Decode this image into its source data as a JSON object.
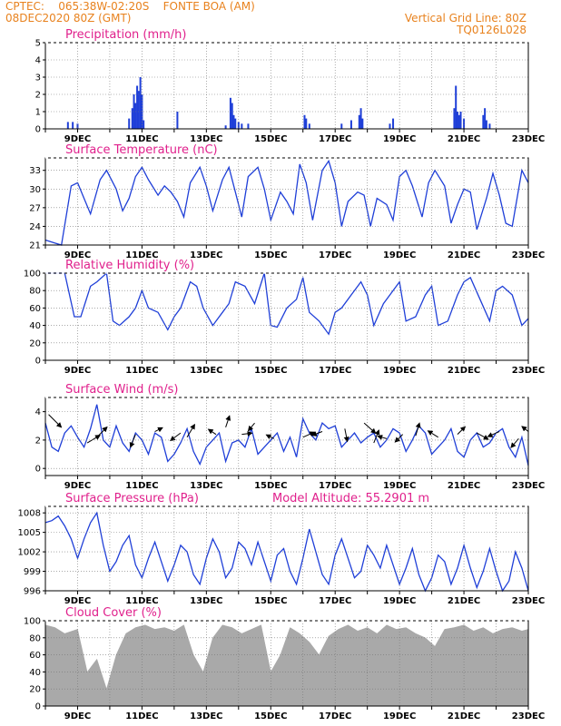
{
  "header": {
    "line1": "CPTEC:    065:38W-02:20S    FONTE BOA (AM)",
    "line2": "08DEC2020 80Z (GMT)",
    "right1": "Vertical Grid Line: 80Z",
    "right2": "TQ0126L028"
  },
  "x_labels": [
    "9DEC",
    "11DEC",
    "13DEC",
    "15DEC",
    "17DEC",
    "19DEC",
    "21DEC",
    "23DEC"
  ],
  "chart_data": [
    {
      "type": "bar",
      "title": "Precipitation (mm/h)",
      "ylim": [
        0,
        5
      ],
      "yticks": [
        0,
        1,
        2,
        3,
        4,
        5
      ],
      "x_range_days": [
        8.0,
        23.0
      ],
      "bars": [
        [
          8.7,
          0.4
        ],
        [
          8.85,
          0.4
        ],
        [
          9.0,
          0.3
        ],
        [
          10.6,
          0.6
        ],
        [
          10.7,
          1.2
        ],
        [
          10.75,
          2.0
        ],
        [
          10.8,
          1.5
        ],
        [
          10.85,
          2.5
        ],
        [
          10.9,
          2.2
        ],
        [
          10.95,
          3.0
        ],
        [
          11.0,
          2.0
        ],
        [
          11.05,
          0.5
        ],
        [
          12.1,
          1.0
        ],
        [
          13.6,
          0.2
        ],
        [
          13.75,
          1.8
        ],
        [
          13.8,
          1.5
        ],
        [
          13.85,
          0.8
        ],
        [
          13.9,
          0.6
        ],
        [
          14.0,
          0.4
        ],
        [
          14.1,
          0.3
        ],
        [
          14.3,
          0.3
        ],
        [
          16.05,
          0.8
        ],
        [
          16.1,
          0.6
        ],
        [
          16.2,
          0.3
        ],
        [
          17.2,
          0.3
        ],
        [
          17.5,
          0.5
        ],
        [
          17.75,
          0.8
        ],
        [
          17.8,
          1.2
        ],
        [
          17.85,
          0.6
        ],
        [
          18.7,
          0.3
        ],
        [
          18.8,
          0.6
        ],
        [
          20.7,
          1.2
        ],
        [
          20.75,
          2.5
        ],
        [
          20.8,
          1.0
        ],
        [
          20.85,
          0.8
        ],
        [
          20.9,
          1.0
        ],
        [
          21.0,
          0.6
        ],
        [
          21.6,
          0.8
        ],
        [
          21.65,
          1.2
        ],
        [
          21.7,
          0.5
        ],
        [
          21.8,
          0.3
        ]
      ]
    },
    {
      "type": "line",
      "title": "Surface Temperature (nC)",
      "ylim": [
        21,
        35
      ],
      "yticks": [
        21,
        24,
        27,
        30,
        33
      ],
      "x": [
        8.0,
        8.3,
        8.5,
        8.8,
        9.0,
        9.2,
        9.4,
        9.7,
        9.9,
        10.2,
        10.4,
        10.6,
        10.8,
        11.0,
        11.2,
        11.5,
        11.7,
        11.9,
        12.1,
        12.3,
        12.5,
        12.8,
        13.0,
        13.2,
        13.5,
        13.7,
        13.9,
        14.1,
        14.3,
        14.6,
        14.8,
        15.0,
        15.3,
        15.5,
        15.7,
        15.9,
        16.1,
        16.3,
        16.6,
        16.8,
        17.0,
        17.2,
        17.4,
        17.7,
        17.9,
        18.1,
        18.3,
        18.6,
        18.8,
        19.0,
        19.2,
        19.4,
        19.7,
        19.9,
        20.1,
        20.4,
        20.6,
        20.8,
        21.0,
        21.2,
        21.4,
        21.7,
        21.9,
        22.1,
        22.3,
        22.5,
        22.8,
        23.0
      ],
      "y": [
        21.8,
        21.3,
        21.0,
        30.5,
        31.0,
        28.5,
        26.0,
        31.5,
        33.0,
        30.0,
        26.5,
        28.5,
        32.0,
        33.5,
        31.5,
        29.0,
        30.5,
        29.5,
        28.0,
        25.5,
        31.0,
        33.5,
        30.5,
        26.5,
        31.5,
        33.5,
        29.5,
        25.5,
        32.0,
        33.5,
        30.0,
        25.0,
        29.5,
        28.0,
        26.0,
        34.0,
        31.0,
        25.0,
        33.0,
        34.5,
        31.0,
        24.0,
        28.0,
        29.5,
        29.0,
        24.0,
        28.5,
        27.5,
        25.0,
        32.0,
        33.0,
        30.5,
        25.5,
        31.0,
        33.0,
        30.5,
        24.5,
        27.5,
        30.0,
        29.5,
        23.5,
        28.5,
        32.5,
        29.0,
        24.5,
        24.0,
        33.0,
        31.0
      ]
    },
    {
      "type": "line",
      "title": "Relative Humidity (%)",
      "ylim": [
        0,
        100
      ],
      "yticks": [
        0,
        20,
        40,
        60,
        80,
        100
      ],
      "x": [
        8.0,
        8.3,
        8.6,
        8.9,
        9.1,
        9.4,
        9.6,
        9.9,
        10.1,
        10.3,
        10.6,
        10.8,
        11.0,
        11.2,
        11.5,
        11.8,
        12.0,
        12.2,
        12.5,
        12.7,
        12.9,
        13.2,
        13.5,
        13.7,
        13.9,
        14.2,
        14.5,
        14.8,
        15.0,
        15.2,
        15.5,
        15.8,
        16.0,
        16.2,
        16.5,
        16.8,
        17.0,
        17.2,
        17.5,
        17.8,
        18.0,
        18.2,
        18.5,
        18.8,
        19.0,
        19.2,
        19.5,
        19.8,
        20.0,
        20.2,
        20.5,
        20.8,
        21.0,
        21.2,
        21.5,
        21.8,
        22.0,
        22.2,
        22.5,
        22.8,
        23.0
      ],
      "y": [
        100,
        100,
        100,
        50,
        50,
        85,
        90,
        100,
        45,
        40,
        50,
        60,
        80,
        60,
        55,
        35,
        50,
        60,
        90,
        85,
        60,
        40,
        55,
        65,
        90,
        85,
        65,
        100,
        40,
        38,
        60,
        70,
        95,
        55,
        45,
        30,
        55,
        60,
        75,
        90,
        75,
        40,
        65,
        80,
        90,
        45,
        50,
        75,
        85,
        40,
        45,
        75,
        90,
        95,
        70,
        45,
        80,
        85,
        75,
        40,
        48
      ]
    },
    {
      "type": "line",
      "title": "Surface Wind (m/s)",
      "ylim": [
        -0.5,
        5
      ],
      "yticks": [
        0,
        2,
        4
      ],
      "x": [
        8.0,
        8.2,
        8.4,
        8.6,
        8.8,
        9.0,
        9.2,
        9.4,
        9.6,
        9.8,
        10.0,
        10.2,
        10.4,
        10.6,
        10.8,
        11.0,
        11.2,
        11.4,
        11.6,
        11.8,
        12.0,
        12.2,
        12.4,
        12.6,
        12.8,
        13.0,
        13.2,
        13.4,
        13.6,
        13.8,
        14.0,
        14.2,
        14.4,
        14.6,
        14.8,
        15.0,
        15.2,
        15.4,
        15.6,
        15.8,
        16.0,
        16.2,
        16.4,
        16.6,
        16.8,
        17.0,
        17.2,
        17.4,
        17.6,
        17.8,
        18.0,
        18.2,
        18.4,
        18.6,
        18.8,
        19.0,
        19.2,
        19.4,
        19.6,
        19.8,
        20.0,
        20.2,
        20.4,
        20.6,
        20.8,
        21.0,
        21.2,
        21.4,
        21.6,
        21.8,
        22.0,
        22.2,
        22.4,
        22.6,
        22.8,
        23.0
      ],
      "y": [
        3.2,
        1.5,
        1.2,
        2.5,
        3.0,
        2.2,
        1.5,
        2.8,
        4.5,
        2.0,
        1.5,
        3.0,
        1.8,
        1.2,
        2.5,
        2.0,
        1.0,
        2.5,
        2.2,
        0.5,
        1.0,
        1.8,
        2.8,
        1.2,
        0.3,
        1.5,
        2.0,
        2.5,
        0.5,
        1.8,
        2.0,
        1.5,
        2.8,
        1.0,
        1.5,
        2.0,
        2.5,
        1.2,
        2.2,
        0.8,
        3.5,
        2.5,
        2.0,
        3.2,
        2.8,
        3.0,
        1.5,
        2.0,
        2.5,
        1.8,
        2.2,
        2.5,
        1.5,
        2.0,
        2.8,
        2.5,
        1.2,
        2.0,
        3.0,
        2.5,
        1.0,
        1.5,
        2.0,
        2.8,
        1.2,
        0.8,
        2.0,
        2.5,
        1.5,
        1.8,
        2.5,
        2.8,
        1.5,
        0.8,
        2.2,
        0.2
      ],
      "vectors": [
        [
          8.1,
          3.8,
          1,
          -1
        ],
        [
          9.3,
          1.8,
          1,
          0.6
        ],
        [
          9.6,
          2.2,
          0.8,
          0.8
        ],
        [
          10.8,
          2.4,
          -0.4,
          -1
        ],
        [
          11.4,
          2.6,
          0.6,
          0.3
        ],
        [
          12.2,
          2.5,
          -0.8,
          -0.6
        ],
        [
          12.4,
          2.2,
          0.6,
          1
        ],
        [
          13.3,
          2.4,
          -0.6,
          0.4
        ],
        [
          13.6,
          2.9,
          0.3,
          0.9
        ],
        [
          14.1,
          2.4,
          0.8,
          0.1
        ],
        [
          14.5,
          3.2,
          -0.5,
          -0.6
        ],
        [
          15.1,
          2.1,
          -0.6,
          0.3
        ],
        [
          16.0,
          2.2,
          0.9,
          0.4
        ],
        [
          16.6,
          2.6,
          -0.8,
          -0.3
        ],
        [
          17.3,
          2.8,
          0.2,
          -1
        ],
        [
          17.9,
          3.2,
          0.9,
          -0.8
        ],
        [
          18.2,
          1.8,
          0.4,
          1
        ],
        [
          18.6,
          2.1,
          -0.7,
          0.2
        ],
        [
          19.1,
          2.4,
          -0.6,
          -0.6
        ],
        [
          19.5,
          2.3,
          0.3,
          1
        ],
        [
          20.2,
          2.2,
          -0.8,
          0.5
        ],
        [
          20.8,
          2.4,
          0.6,
          0.6
        ],
        [
          21.4,
          2.5,
          0.9,
          -0.5
        ],
        [
          22.1,
          2.6,
          -0.9,
          -0.4
        ],
        [
          22.7,
          2.1,
          -0.6,
          -0.7
        ],
        [
          23.0,
          2.6,
          -0.5,
          0.4
        ]
      ]
    },
    {
      "type": "line",
      "title": "Surface Pressure (hPa)",
      "annotation": "Model Altitude: 55.2901  m",
      "ylim": [
        996,
        1009
      ],
      "yticks": [
        996,
        999,
        1002,
        1005,
        1008
      ],
      "x": [
        8.0,
        8.2,
        8.4,
        8.6,
        8.8,
        9.0,
        9.2,
        9.4,
        9.6,
        9.8,
        10.0,
        10.2,
        10.4,
        10.6,
        10.8,
        11.0,
        11.2,
        11.4,
        11.6,
        11.8,
        12.0,
        12.2,
        12.4,
        12.6,
        12.8,
        13.0,
        13.2,
        13.4,
        13.6,
        13.8,
        14.0,
        14.2,
        14.4,
        14.6,
        14.8,
        15.0,
        15.2,
        15.4,
        15.6,
        15.8,
        16.0,
        16.2,
        16.4,
        16.6,
        16.8,
        17.0,
        17.2,
        17.4,
        17.6,
        17.8,
        18.0,
        18.2,
        18.4,
        18.6,
        18.8,
        19.0,
        19.2,
        19.4,
        19.6,
        19.8,
        20.0,
        20.2,
        20.4,
        20.6,
        20.8,
        21.0,
        21.2,
        21.4,
        21.6,
        21.8,
        22.0,
        22.2,
        22.4,
        22.6,
        22.8,
        23.0
      ],
      "y": [
        1006.5,
        1006.8,
        1007.5,
        1006.0,
        1004.0,
        1001.0,
        1004.0,
        1006.5,
        1008.0,
        1003.0,
        999.0,
        1000.5,
        1003.0,
        1004.5,
        1000.0,
        998.0,
        1001.0,
        1003.5,
        1000.5,
        997.5,
        1000.0,
        1003.0,
        1002.0,
        998.5,
        997.0,
        1001.0,
        1004.0,
        1002.0,
        998.0,
        999.5,
        1003.5,
        1002.5,
        1000.0,
        1003.5,
        1000.5,
        997.5,
        1001.5,
        1002.5,
        999.0,
        997.0,
        1001.0,
        1005.5,
        1002.0,
        998.5,
        997.0,
        1001.5,
        1004.0,
        1001.0,
        998.0,
        999.0,
        1003.0,
        1001.5,
        999.5,
        1003.0,
        1000.0,
        997.0,
        999.5,
        1002.5,
        998.5,
        996.0,
        998.0,
        1001.5,
        1000.5,
        997.0,
        999.5,
        1003.0,
        999.5,
        996.5,
        999.0,
        1002.5,
        999.0,
        996.0,
        997.5,
        1002.0,
        999.5,
        996.0
      ]
    },
    {
      "type": "area",
      "title": "Cloud Cover (%)",
      "ylim": [
        0,
        100
      ],
      "yticks": [
        0,
        20,
        40,
        60,
        80,
        100
      ],
      "x": [
        8.0,
        8.3,
        8.6,
        9.0,
        9.3,
        9.6,
        9.9,
        10.2,
        10.5,
        10.8,
        11.1,
        11.4,
        11.7,
        12.0,
        12.3,
        12.6,
        12.9,
        13.2,
        13.5,
        13.8,
        14.1,
        14.4,
        14.7,
        15.0,
        15.3,
        15.6,
        15.9,
        16.2,
        16.5,
        16.8,
        17.1,
        17.4,
        17.7,
        18.0,
        18.3,
        18.6,
        18.9,
        19.2,
        19.5,
        19.8,
        20.1,
        20.4,
        20.7,
        21.0,
        21.3,
        21.6,
        21.9,
        22.2,
        22.5,
        22.8,
        23.0
      ],
      "y": [
        95,
        92,
        85,
        90,
        40,
        55,
        20,
        60,
        85,
        92,
        95,
        90,
        92,
        88,
        95,
        60,
        40,
        80,
        95,
        92,
        85,
        90,
        95,
        40,
        60,
        92,
        85,
        75,
        60,
        82,
        90,
        95,
        88,
        92,
        85,
        95,
        90,
        92,
        85,
        80,
        70,
        90,
        92,
        95,
        88,
        92,
        85,
        90,
        92,
        88,
        90
      ]
    }
  ]
}
